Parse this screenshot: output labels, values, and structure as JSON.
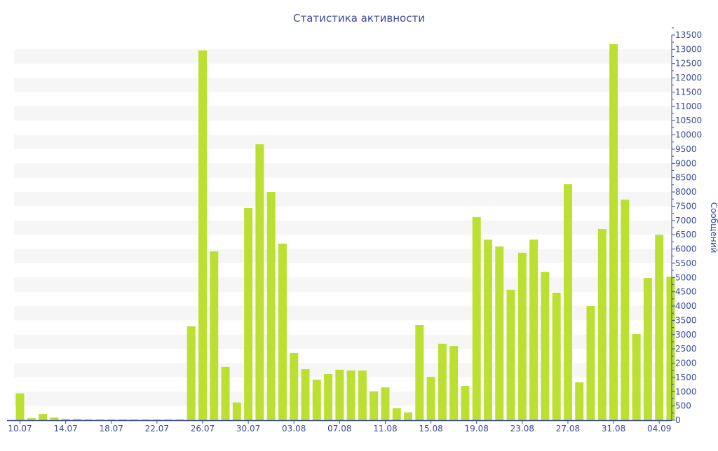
{
  "chart_data": {
    "type": "bar",
    "title": "Статистика активности",
    "xlabel": "",
    "ylabel": "Сообщений",
    "ylim": [
      0,
      13500
    ],
    "ytick_step": 500,
    "grid": "alternating horizontal bands",
    "y_axis_side": "right",
    "bar_color": "#bce032",
    "text_color": "#3b4a9a",
    "categories": [
      "10.07",
      "11.07",
      "12.07",
      "13.07",
      "14.07",
      "15.07",
      "16.07",
      "17.07",
      "18.07",
      "19.07",
      "20.07",
      "21.07",
      "22.07",
      "23.07",
      "24.07",
      "25.07",
      "26.07",
      "27.07",
      "28.07",
      "29.07",
      "30.07",
      "31.07",
      "01.08",
      "02.08",
      "03.08",
      "04.08",
      "05.08",
      "06.08",
      "07.08",
      "08.08",
      "09.08",
      "10.08",
      "11.08",
      "12.08",
      "13.08",
      "14.08",
      "15.08",
      "16.08",
      "17.08",
      "18.08",
      "19.08",
      "20.08",
      "21.08",
      "22.08",
      "23.08",
      "24.08",
      "25.08",
      "26.08",
      "27.08",
      "28.08",
      "29.08",
      "30.08",
      "31.08",
      "01.09",
      "02.09",
      "03.09",
      "04.09",
      "05.09"
    ],
    "xtick_labels": [
      "10.07",
      "14.07",
      "18.07",
      "22.07",
      "26.07",
      "30.07",
      "03.08",
      "07.08",
      "11.08",
      "15.08",
      "19.08",
      "23.08",
      "27.08",
      "31.08",
      "04.09"
    ],
    "values": [
      940,
      70,
      220,
      90,
      50,
      50,
      30,
      30,
      30,
      30,
      30,
      30,
      30,
      30,
      30,
      3290,
      12960,
      5920,
      1870,
      620,
      7440,
      9670,
      8000,
      6190,
      2360,
      1790,
      1420,
      1620,
      1770,
      1740,
      1740,
      1010,
      1150,
      420,
      270,
      3340,
      1520,
      2680,
      2600,
      1200,
      7120,
      6330,
      6090,
      4570,
      5870,
      6330,
      5200,
      4470,
      8270,
      1330,
      4000,
      6700,
      13180,
      7730,
      3020,
      4980,
      6500,
      5030
    ]
  }
}
